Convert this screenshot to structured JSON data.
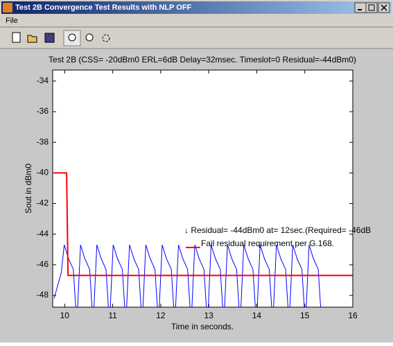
{
  "window": {
    "title": "Test 2B Convergence Test Results with NLP OFF",
    "menu": [
      "File"
    ]
  },
  "chart_data": {
    "type": "line",
    "title": "Test 2B (CSS= -20dBm0 ERL=6dB Delay=32msec. Timeslot=0 Residual=-44dBm0)",
    "x_label": "Time in seconds.",
    "y_label": "Sout in dBm0",
    "annotations": [
      "↓ Residual=  -44dBm0 at= 12sec.(Required=  -46dB",
      "Fail residual requirement per G.168."
    ],
    "xlim": [
      9.75,
      16
    ],
    "ylim": [
      -48.77,
      -33.28
    ],
    "xticks": [
      10,
      11,
      12,
      13,
      14,
      15,
      16
    ],
    "yticks": [
      -34,
      -36,
      -38,
      -40,
      -42,
      -44,
      -46,
      -48
    ],
    "grid": false,
    "series": [
      {
        "color": "#0000ff",
        "x": [
          9.78,
          9.93,
          9.99,
          10.08,
          10.18,
          10.23,
          10.27,
          10.33,
          10.42,
          10.52,
          10.57,
          10.61,
          10.67,
          10.76,
          10.86,
          10.91,
          10.95,
          11.01,
          11.1,
          11.2,
          11.25,
          11.29,
          11.35,
          11.44,
          11.54,
          11.59,
          11.63,
          11.69,
          11.78,
          11.88,
          11.93,
          11.97,
          12.03,
          12.12,
          12.22,
          12.27,
          12.31,
          12.37,
          12.46,
          12.56,
          12.61,
          12.65,
          12.71,
          12.8,
          12.9,
          12.95,
          12.99,
          13.05,
          13.14,
          13.24,
          13.29,
          13.33,
          13.39,
          13.48,
          13.58,
          13.63,
          13.67,
          13.73,
          13.82,
          13.92,
          13.97,
          14.01,
          14.07,
          14.16,
          14.26,
          14.31,
          14.35,
          14.41,
          14.5,
          14.6,
          14.65,
          14.69,
          14.75,
          14.84,
          14.94,
          14.99,
          15.03,
          15.09,
          15.18,
          15.28,
          15.33
        ],
        "values": [
          -48.2,
          -46.5,
          -44.7,
          -45.6,
          -46.3,
          -48.77,
          -48.77,
          -44.7,
          -45.6,
          -46.3,
          -48.77,
          -48.77,
          -44.7,
          -45.6,
          -46.3,
          -48.77,
          -48.77,
          -44.7,
          -45.6,
          -46.3,
          -48.77,
          -48.77,
          -44.7,
          -45.6,
          -46.3,
          -48.77,
          -48.77,
          -44.7,
          -45.6,
          -46.3,
          -48.77,
          -48.77,
          -44.7,
          -45.6,
          -46.3,
          -48.77,
          -48.77,
          -44.7,
          -45.6,
          -46.3,
          -48.77,
          -48.77,
          -44.7,
          -45.6,
          -46.3,
          -48.77,
          -48.77,
          -44.7,
          -45.6,
          -46.3,
          -48.77,
          -48.77,
          -44.7,
          -45.6,
          -46.3,
          -48.77,
          -48.77,
          -44.7,
          -45.6,
          -46.3,
          -48.77,
          -48.77,
          -44.7,
          -45.6,
          -46.3,
          -48.77,
          -48.77,
          -44.7,
          -45.6,
          -46.3,
          -48.77,
          -48.77,
          -44.7,
          -45.6,
          -46.3,
          -48.77,
          -48.77,
          -44.7,
          -45.6,
          -46.3,
          -48.77
        ]
      },
      {
        "color": "#ff0000",
        "x": [
          9.78,
          10.04,
          10.07,
          16,
          16,
          12.52,
          12.82
        ],
        "values": [
          -40,
          -40,
          -46.7,
          -46.7,
          null,
          -44.87,
          -44.87
        ]
      }
    ]
  }
}
